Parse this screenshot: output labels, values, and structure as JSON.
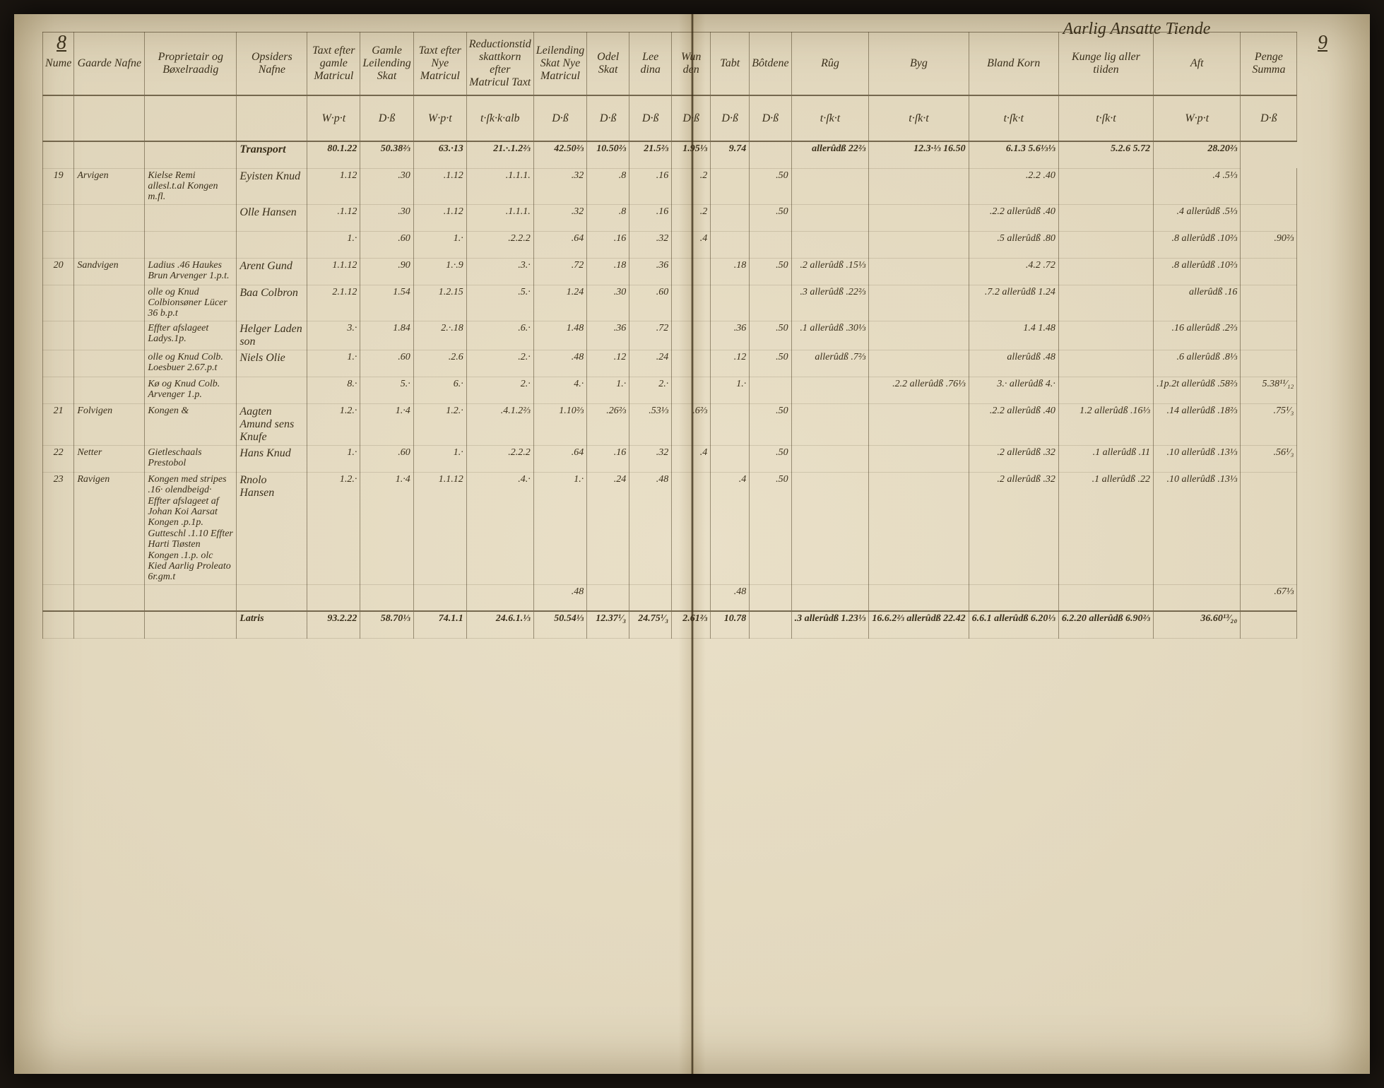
{
  "page_left": "8",
  "page_right": "9",
  "section_title": "Aarlig Ansatte Tiende",
  "headers": {
    "c1": "Nume",
    "c2": "Gaarde Nafne",
    "c3": "Proprietair og Bøxelraadig",
    "c4": "Opsiders Nafne",
    "c5": "Taxt efter gamle Matricul",
    "c6": "Gamle Leilending Skat",
    "c7": "Taxt efter Nye Matricul",
    "c8": "Reductionstid skattkorn efter Matricul Taxt",
    "c9": "Leilending Skat Nye Matricul",
    "c10": "Odel Skat",
    "c11": "Lee dina",
    "c12": "Wun den",
    "c13": "Tabt",
    "c14": "Bôtdene",
    "c15": "Rûg",
    "c16": "Byg",
    "c17": "Bland Korn",
    "c18": "Kunge lig aller tiiden",
    "c19": "Aft",
    "c20": "Penge Summa"
  },
  "unit_row": [
    "",
    "",
    "",
    "",
    "W·p·t",
    "D·ß",
    "W·p·t",
    "t·ſk·k·alb",
    "D·ß",
    "D·ß",
    "D·ß",
    "D·ß",
    "D·ß",
    "D·ß",
    "t·ſk·t",
    "t·ſk·t",
    "t·ſk·t",
    "t·ſk·t",
    "W·p·t",
    "D·ß"
  ],
  "transport": {
    "label": "Transport",
    "values": [
      "80.1.22",
      "50.38⅔",
      "63.·13",
      "21.·.1.2⅔",
      "42.50⅔",
      "10.50⅔",
      "21.5⅔",
      "1.95⅓",
      "9.74",
      "",
      "allerûdß 22⅔",
      "12.3·⅓ 16.50",
      "6.1.3 5.6⅓⅓",
      "5.2.6 5.72",
      "28.20⅔"
    ]
  },
  "rows": [
    {
      "num": "19",
      "name": "Arvigen",
      "prop": "Kielse Remi allesl.t.al Kongen m.fl.",
      "opsider": "Eyisten Knud",
      "c5": "1.12",
      "c6": ".30",
      "c7": ".1.12",
      "c8": ".1.1.1.",
      "c9": ".32",
      "c10": ".8",
      "c11": ".16",
      "c12": ".2",
      "c13": "",
      "c14": ".50",
      "c15": "",
      "c16": "",
      "c17": ".2.2 .40",
      "c18": "",
      "c19": ".4 .5⅓",
      "c20": ""
    },
    {
      "num": "",
      "name": "",
      "prop": "",
      "opsider": "Olle Hansen",
      "c5": ".1.12",
      "c6": ".30",
      "c7": ".1.12",
      "c8": ".1.1.1.",
      "c9": ".32",
      "c10": ".8",
      "c11": ".16",
      "c12": ".2",
      "c13": "",
      "c14": ".50",
      "c15": "",
      "c16": "",
      "c17": ".2.2 allerûdß .40",
      "c18": "",
      "c19": ".4 allerûdß .5⅓",
      "c20": ""
    },
    {
      "num": "",
      "name": "",
      "prop": "",
      "opsider": "",
      "c5": "1.·",
      "c6": ".60",
      "c7": "1.·",
      "c8": ".2.2.2",
      "c9": ".64",
      "c10": ".16",
      "c11": ".32",
      "c12": ".4",
      "c13": "",
      "c14": "",
      "c15": "",
      "c16": "",
      "c17": ".5 allerûdß .80",
      "c18": "",
      "c19": ".8 allerûdß .10⅔",
      "c20": ".90⅔"
    },
    {
      "num": "20",
      "name": "Sandvigen",
      "prop": "Ladius .46 Haukes Brun Arvenger 1.p.t.",
      "opsider": "Arent Gund",
      "c5": "1.1.12",
      "c6": ".90",
      "c7": "1.·.9",
      "c8": ".3.·",
      "c9": ".72",
      "c10": ".18",
      "c11": ".36",
      "c12": "",
      "c13": ".18",
      "c14": ".50",
      "c15": ".2 allerûdß .15⅓",
      "c16": "",
      "c17": ".4.2 .72",
      "c18": "",
      "c19": ".8 allerûdß .10⅔",
      "c20": ""
    },
    {
      "num": "",
      "name": "",
      "prop": "olle og Knud Colbionsøner Lücer 36 b.p.t",
      "opsider": "Baa Colbron",
      "c5": "2.1.12",
      "c6": "1.54",
      "c7": "1.2.15",
      "c8": ".5.·",
      "c9": "1.24",
      "c10": ".30",
      "c11": ".60",
      "c12": "",
      "c13": "",
      "c14": "",
      "c15": ".3 allerûdß .22⅔",
      "c16": "",
      "c17": ".7.2 allerûdß 1.24",
      "c18": "",
      "c19": "allerûdß .16",
      "c20": ""
    },
    {
      "num": "",
      "name": "",
      "prop": "Effter afslageet Ladys.1p.",
      "opsider": "Helger Laden son",
      "c5": "3.·",
      "c6": "1.84",
      "c7": "2.·.18",
      "c8": ".6.·",
      "c9": "1.48",
      "c10": ".36",
      "c11": ".72",
      "c12": "",
      "c13": ".36",
      "c14": ".50",
      "c15": ".1 allerûdß .30⅓",
      "c16": "",
      "c17": "1.4 1.48",
      "c18": "",
      "c19": ".16 allerûdß .2⅔",
      "c20": ""
    },
    {
      "num": "",
      "name": "",
      "prop": "olle og Knud Colb. Loesbuer 2.67.p.t",
      "opsider": "Niels Olie",
      "c5": "1.·",
      "c6": ".60",
      "c7": ".2.6",
      "c8": ".2.·",
      "c9": ".48",
      "c10": ".12",
      "c11": ".24",
      "c12": "",
      "c13": ".12",
      "c14": ".50",
      "c15": "allerûdß .7⅔",
      "c16": "",
      "c17": "allerûdß .48",
      "c18": "",
      "c19": ".6 allerûdß .8⅓",
      "c20": ""
    },
    {
      "num": "",
      "name": "",
      "prop": "Kø og Knud Colb. Arvenger 1.p.",
      "opsider": "",
      "c5": "8.·",
      "c6": "5.·",
      "c7": "6.·",
      "c8": "2.·",
      "c9": "4.·",
      "c10": "1.·",
      "c11": "2.·",
      "c12": "",
      "c13": "1.·",
      "c14": "",
      "c15": "",
      "c16": ".2.2 allerûdß .76⅓",
      "c17": "3.· allerûdß 4.·",
      "c18": "",
      "c19": ".1p.2t allerûdß .58⅔",
      "c20": "5.38¹¹⁄₁₂"
    },
    {
      "num": "21",
      "name": "Folvigen",
      "prop": "Kongen &",
      "opsider": "Aagten Amund sens Knufe",
      "c5": "1.2.·",
      "c6": "1.·4",
      "c7": "1.2.·",
      "c8": ".4.1.2⅔",
      "c9": "1.10⅔",
      "c10": ".26⅔",
      "c11": ".53⅓",
      "c12": ".6⅔",
      "c13": "",
      "c14": ".50",
      "c15": "",
      "c16": "",
      "c17": ".2.2 allerûdß .40",
      "c18": "1.2 allerûdß .16⅓",
      "c19": ".14 allerûdß .18⅔",
      "c20": ".75¹⁄₃"
    },
    {
      "num": "22",
      "name": "Netter",
      "prop": "Gietleschaals Prestobol",
      "opsider": "Hans Knud",
      "c5": "1.·",
      "c6": ".60",
      "c7": "1.·",
      "c8": ".2.2.2",
      "c9": ".64",
      "c10": ".16",
      "c11": ".32",
      "c12": ".4",
      "c13": "",
      "c14": ".50",
      "c15": "",
      "c16": "",
      "c17": ".2 allerûdß .32",
      "c18": ".1 allerûdß .11",
      "c19": ".10 allerûdß .13⅓",
      "c20": ".56¹⁄₃"
    },
    {
      "num": "23",
      "name": "Ravigen",
      "prop": "Kongen med stripes .16· olendbeigd· Effter afslageet af Johan Koi Aarsat Kongen .p.1p. Gutteschl .1.10 Effter Harti Tiøsten Kongen .1.p. olc Kied Aarlig Proleato 6r.gm.t",
      "opsider": "Rnolo Hansen",
      "c5": "1.2.·",
      "c6": "1.·4",
      "c7": "1.1.12",
      "c8": ".4.·",
      "c9": "1.·",
      "c10": ".24",
      "c11": ".48",
      "c12": "",
      "c13": ".4",
      "c14": ".50",
      "c15": "",
      "c16": "",
      "c17": ".2 allerûdß .32",
      "c18": ".1 allerûdß .22",
      "c19": ".10 allerûdß .13⅓",
      "c20": ""
    },
    {
      "num": "",
      "name": "",
      "prop": "",
      "opsider": "",
      "c5": "",
      "c6": "",
      "c7": "",
      "c8": "",
      "c9": ".48",
      "c10": "",
      "c11": "",
      "c12": "",
      "c13": ".48",
      "c14": "",
      "c15": "",
      "c16": "",
      "c17": "",
      "c18": "",
      "c19": "",
      "c20": ".67⅓"
    }
  ],
  "latris": {
    "label": "Latris",
    "values": [
      "93.2.22",
      "58.70⅓",
      "74.1.1",
      "24.6.1.⅓",
      "50.54⅓",
      "12.37¹⁄₃",
      "24.75¹⁄₃",
      "2.61⅔",
      "10.78",
      "",
      ".3 allerûdß 1.23⅓",
      "16.6.2⅔ allerûdß 22.42",
      "6.6.1 allerûdß 6.20⅓",
      "6.2.20 allerûdß 6.90⅔",
      "36.60¹³⁄₂₀"
    ]
  },
  "colors": {
    "paper": "#e8dfc8",
    "ink": "#3a2f1a",
    "rule": "rgba(70,55,30,0.5)"
  }
}
